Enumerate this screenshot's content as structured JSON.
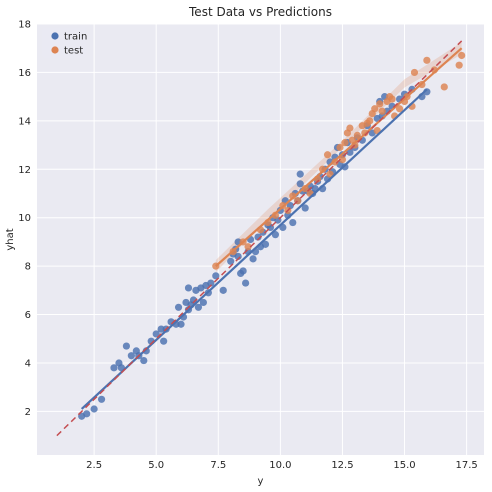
{
  "chart_data": {
    "type": "scatter",
    "title": "Test Data vs Predictions",
    "xlabel": "y",
    "ylabel": "yhat",
    "xlim": [
      0.2,
      18.2
    ],
    "ylim": [
      0.2,
      18.0
    ],
    "xticks": [
      2.5,
      5.0,
      7.5,
      10.0,
      12.5,
      15.0,
      17.5
    ],
    "xtick_labels": [
      "2.5",
      "5.0",
      "7.5",
      "10.0",
      "12.5",
      "15.0",
      "17.5"
    ],
    "yticks": [
      2,
      4,
      6,
      8,
      10,
      12,
      14,
      16,
      18
    ],
    "ytick_labels": [
      "2",
      "4",
      "6",
      "8",
      "10",
      "12",
      "14",
      "16",
      "18"
    ],
    "grid": true,
    "legend_position": "top-left",
    "colors": {
      "background": "#eaeaf2",
      "grid": "#ffffff",
      "train": "#4c72b0",
      "test": "#dd8452",
      "identity_line": "#c44e52"
    },
    "series": [
      {
        "name": "train",
        "points": [
          [
            2.0,
            1.8
          ],
          [
            2.2,
            1.9
          ],
          [
            2.5,
            2.1
          ],
          [
            2.8,
            2.5
          ],
          [
            3.3,
            3.8
          ],
          [
            3.5,
            4.0
          ],
          [
            3.6,
            3.8
          ],
          [
            3.8,
            4.7
          ],
          [
            4.0,
            4.3
          ],
          [
            4.2,
            4.5
          ],
          [
            4.3,
            4.3
          ],
          [
            4.5,
            4.1
          ],
          [
            4.6,
            4.5
          ],
          [
            4.8,
            4.9
          ],
          [
            5.0,
            5.2
          ],
          [
            5.2,
            5.4
          ],
          [
            5.3,
            4.9
          ],
          [
            5.4,
            5.4
          ],
          [
            5.6,
            5.7
          ],
          [
            5.8,
            5.6
          ],
          [
            5.9,
            6.3
          ],
          [
            6.0,
            5.6
          ],
          [
            6.1,
            5.9
          ],
          [
            6.2,
            6.5
          ],
          [
            6.3,
            6.2
          ],
          [
            6.3,
            7.1
          ],
          [
            6.4,
            6.4
          ],
          [
            6.5,
            6.6
          ],
          [
            6.6,
            7.0
          ],
          [
            6.7,
            6.3
          ],
          [
            6.8,
            7.1
          ],
          [
            6.9,
            6.5
          ],
          [
            7.0,
            7.2
          ],
          [
            7.1,
            6.9
          ],
          [
            7.2,
            7.3
          ],
          [
            7.4,
            7.6
          ],
          [
            7.7,
            7.0
          ],
          [
            8.0,
            8.2
          ],
          [
            8.1,
            8.5
          ],
          [
            8.2,
            8.7
          ],
          [
            8.3,
            8.4
          ],
          [
            8.3,
            9.0
          ],
          [
            8.4,
            7.7
          ],
          [
            8.5,
            7.8
          ],
          [
            8.6,
            7.3
          ],
          [
            8.7,
            8.6
          ],
          [
            8.8,
            9.1
          ],
          [
            8.9,
            8.3
          ],
          [
            9.0,
            8.6
          ],
          [
            9.1,
            9.2
          ],
          [
            9.2,
            8.8
          ],
          [
            9.3,
            9.4
          ],
          [
            9.4,
            8.9
          ],
          [
            9.5,
            9.7
          ],
          [
            9.6,
            9.6
          ],
          [
            9.7,
            10.0
          ],
          [
            9.8,
            9.3
          ],
          [
            9.9,
            9.9
          ],
          [
            10.0,
            10.3
          ],
          [
            10.1,
            9.6
          ],
          [
            10.2,
            10.7
          ],
          [
            10.3,
            10.1
          ],
          [
            10.4,
            10.5
          ],
          [
            10.5,
            9.8
          ],
          [
            10.6,
            11.0
          ],
          [
            10.7,
            10.7
          ],
          [
            10.8,
            11.8
          ],
          [
            10.8,
            11.4
          ],
          [
            10.9,
            11.1
          ],
          [
            11.0,
            10.4
          ],
          [
            11.1,
            11.1
          ],
          [
            11.2,
            11.3
          ],
          [
            11.3,
            11.0
          ],
          [
            11.4,
            11.2
          ],
          [
            11.5,
            11.5
          ],
          [
            11.6,
            11.7
          ],
          [
            11.7,
            11.2
          ],
          [
            11.8,
            12.0
          ],
          [
            11.9,
            11.6
          ],
          [
            12.0,
            12.3
          ],
          [
            12.1,
            11.9
          ],
          [
            12.2,
            12.5
          ],
          [
            12.3,
            12.9
          ],
          [
            12.4,
            12.2
          ],
          [
            12.5,
            12.6
          ],
          [
            12.6,
            12.1
          ],
          [
            12.7,
            13.1
          ],
          [
            12.8,
            12.7
          ],
          [
            13.0,
            12.9
          ],
          [
            13.1,
            13.3
          ],
          [
            13.3,
            13.2
          ],
          [
            13.5,
            13.8
          ],
          [
            13.7,
            13.5
          ],
          [
            13.9,
            14.1
          ],
          [
            14.0,
            14.8
          ],
          [
            14.1,
            14.2
          ],
          [
            14.2,
            15.0
          ],
          [
            14.3,
            14.4
          ],
          [
            14.5,
            14.6
          ],
          [
            14.8,
            14.9
          ],
          [
            15.0,
            15.1
          ],
          [
            15.3,
            15.3
          ],
          [
            15.7,
            15.0
          ],
          [
            15.9,
            15.2
          ]
        ]
      },
      {
        "name": "test",
        "points": [
          [
            7.4,
            8.0
          ],
          [
            8.1,
            8.6
          ],
          [
            8.5,
            9.0
          ],
          [
            8.7,
            8.8
          ],
          [
            9.2,
            9.5
          ],
          [
            9.5,
            9.8
          ],
          [
            9.8,
            10.1
          ],
          [
            10.1,
            10.5
          ],
          [
            10.3,
            10.3
          ],
          [
            10.5,
            10.9
          ],
          [
            10.7,
            10.7
          ],
          [
            11.0,
            11.2
          ],
          [
            11.2,
            11.0
          ],
          [
            11.5,
            11.6
          ],
          [
            11.7,
            12.0
          ],
          [
            11.9,
            12.6
          ],
          [
            12.0,
            11.8
          ],
          [
            12.2,
            12.3
          ],
          [
            12.4,
            12.9
          ],
          [
            12.5,
            12.4
          ],
          [
            12.6,
            13.1
          ],
          [
            12.7,
            13.5
          ],
          [
            12.8,
            13.7
          ],
          [
            12.9,
            13.2
          ],
          [
            13.0,
            13.0
          ],
          [
            13.1,
            13.4
          ],
          [
            13.3,
            13.8
          ],
          [
            13.4,
            13.5
          ],
          [
            13.5,
            13.9
          ],
          [
            13.6,
            14.0
          ],
          [
            13.7,
            14.3
          ],
          [
            13.8,
            14.5
          ],
          [
            13.9,
            13.6
          ],
          [
            14.0,
            14.7
          ],
          [
            14.1,
            14.4
          ],
          [
            14.3,
            14.8
          ],
          [
            14.4,
            15.0
          ],
          [
            14.5,
            14.9
          ],
          [
            14.6,
            14.2
          ],
          [
            14.8,
            14.5
          ],
          [
            15.0,
            14.8
          ],
          [
            15.1,
            15.0
          ],
          [
            15.3,
            14.6
          ],
          [
            15.4,
            16.0
          ],
          [
            15.7,
            15.5
          ],
          [
            15.9,
            16.5
          ],
          [
            16.2,
            16.1
          ],
          [
            16.6,
            15.4
          ],
          [
            17.2,
            16.3
          ],
          [
            17.3,
            16.7
          ]
        ]
      }
    ],
    "fit_lines": [
      {
        "name": "train",
        "x": [
          2.0,
          15.9
        ],
        "y": [
          2.1,
          15.3
        ]
      },
      {
        "name": "test",
        "x": [
          7.4,
          17.3
        ],
        "y": [
          8.0,
          17.0
        ]
      }
    ],
    "identity_line": {
      "x": [
        1.0,
        17.3
      ],
      "y": [
        1.0,
        17.3
      ]
    },
    "confidence_band": {
      "name": "test",
      "x": [
        7.4,
        9.5,
        12.5,
        15.0,
        17.3
      ],
      "lower": [
        7.75,
        9.95,
        12.92,
        15.38,
        16.75
      ],
      "upper": [
        8.25,
        10.35,
        13.18,
        15.72,
        17.25
      ]
    }
  }
}
